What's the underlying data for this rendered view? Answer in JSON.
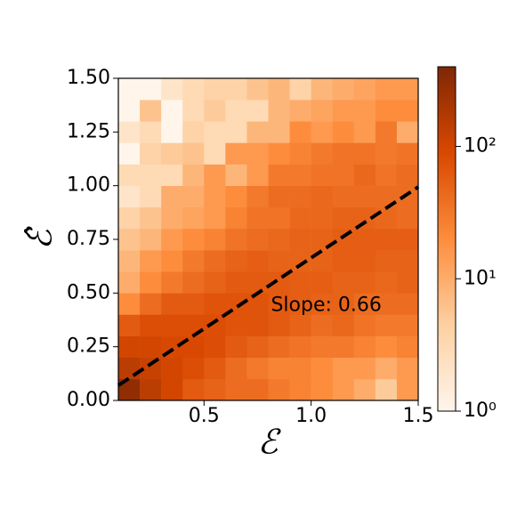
{
  "chart_data": {
    "type": "heatmap",
    "xlabel": "ℰ",
    "ylabel": "ℰ̂",
    "xbins": [
      0.1,
      0.2,
      0.3,
      0.4,
      0.5,
      0.6,
      0.7,
      0.8,
      0.9,
      1.0,
      1.1,
      1.2,
      1.3,
      1.4,
      1.5
    ],
    "ybins": [
      0,
      0.1,
      0.2,
      0.3,
      0.4,
      0.5,
      0.6,
      0.7,
      0.8,
      0.9,
      1.0,
      1.1,
      1.2,
      1.3,
      1.4,
      1.5
    ],
    "values": [
      [
        300,
        150,
        100,
        60,
        50,
        40,
        40,
        30,
        25,
        20,
        15,
        10,
        5,
        15
      ],
      [
        150,
        120,
        100,
        80,
        60,
        40,
        30,
        25,
        25,
        20,
        15,
        15,
        10,
        15
      ],
      [
        100,
        100,
        90,
        90,
        80,
        60,
        50,
        40,
        35,
        30,
        30,
        25,
        20,
        25
      ],
      [
        60,
        80,
        80,
        80,
        80,
        70,
        70,
        60,
        50,
        40,
        45,
        35,
        30,
        30
      ],
      [
        20,
        40,
        60,
        60,
        70,
        70,
        70,
        60,
        55,
        50,
        50,
        40,
        40,
        40
      ],
      [
        10,
        20,
        30,
        40,
        50,
        60,
        60,
        60,
        55,
        55,
        50,
        50,
        45,
        50
      ],
      [
        8,
        15,
        20,
        30,
        40,
        50,
        55,
        50,
        50,
        50,
        55,
        55,
        50,
        50
      ],
      [
        6,
        8,
        15,
        20,
        25,
        35,
        40,
        45,
        50,
        50,
        55,
        55,
        55,
        55
      ],
      [
        4,
        6,
        10,
        12,
        15,
        25,
        35,
        35,
        45,
        45,
        50,
        50,
        45,
        40
      ],
      [
        2,
        3,
        10,
        10,
        15,
        20,
        30,
        40,
        40,
        45,
        40,
        40,
        40,
        40
      ],
      [
        3,
        3,
        3,
        8,
        15,
        8,
        15,
        30,
        30,
        35,
        35,
        45,
        35,
        40
      ],
      [
        1,
        4,
        5,
        6,
        3,
        15,
        15,
        20,
        25,
        30,
        35,
        35,
        30,
        35
      ],
      [
        2,
        3,
        1,
        4,
        3,
        3,
        8,
        8,
        20,
        15,
        20,
        15,
        30,
        10
      ],
      [
        1,
        6,
        1,
        3,
        5,
        3,
        3,
        8,
        10,
        12,
        15,
        15,
        20,
        20
      ],
      [
        1,
        1,
        2,
        3,
        4,
        4,
        6,
        8,
        4,
        8,
        10,
        12,
        15,
        15
      ]
    ],
    "colormap": [
      "#fff5eb",
      "#fdd0a2",
      "#fd8d3c",
      "#d94801",
      "#7f2704"
    ],
    "clim": [
      1,
      400
    ],
    "color_scale": "log",
    "cticks": [
      {
        "value": 1,
        "label": "10⁰"
      },
      {
        "value": 10,
        "label": "10¹"
      },
      {
        "value": 100,
        "label": "10²"
      }
    ],
    "xlim": [
      0.1,
      1.5
    ],
    "ylim": [
      0,
      1.5
    ],
    "xticks": [
      0.5,
      {
        "value": 1,
        "label": "1.0"
      },
      1.5
    ],
    "yticks": [
      {
        "value": 0,
        "label": "0.00"
      },
      0.25,
      {
        "value": 0.5,
        "label": "0.50"
      },
      0.75,
      {
        "value": 1,
        "label": "1.00"
      },
      1.25,
      {
        "value": 1.5,
        "label": "1.50"
      }
    ],
    "fit_line": {
      "x": [
        0.1,
        1.5
      ],
      "y": [
        0.07,
        0.994
      ],
      "color": "#000000"
    },
    "annotation": {
      "text": "Slope: 0.66",
      "x": 0.75,
      "y": 0.45
    }
  }
}
